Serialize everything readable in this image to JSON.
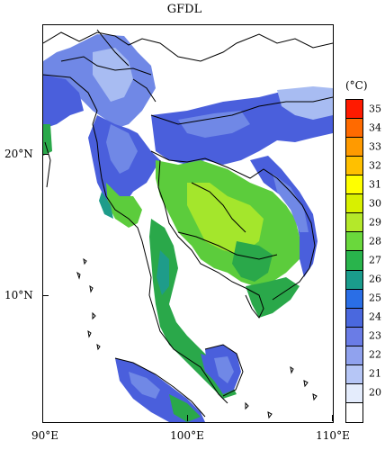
{
  "title": "GFDL",
  "unit": "(°C)",
  "lon_ticks": [
    "90°E",
    "100°E",
    "110°E"
  ],
  "lat_ticks": [
    "20°N",
    "10°N"
  ],
  "colorbar": {
    "levels": [
      "35",
      "34",
      "33",
      "32",
      "31",
      "30",
      "29",
      "28",
      "27",
      "26",
      "25",
      "24",
      "23",
      "22",
      "21",
      "20"
    ],
    "colors": [
      "#ff1a00",
      "#ff6a00",
      "#ff9a00",
      "#ffc000",
      "#ffff00",
      "#d8f000",
      "#b4e82a",
      "#6ad83c",
      "#29b44c",
      "#1a9c8c",
      "#2a6ee6",
      "#4a68de",
      "#6a7ce6",
      "#90a2ee",
      "#b6c6f6",
      "#e4ecfc",
      "#ffffff"
    ]
  },
  "colors": {
    "blue_dark": "#4a5fdc",
    "blue_mid": "#7088e6",
    "blue_light": "#a8bcf2",
    "green_dark": "#2aa84a",
    "green_mid": "#5ccc3c",
    "green_light": "#a4e62c",
    "teal": "#1e9c8a"
  }
}
